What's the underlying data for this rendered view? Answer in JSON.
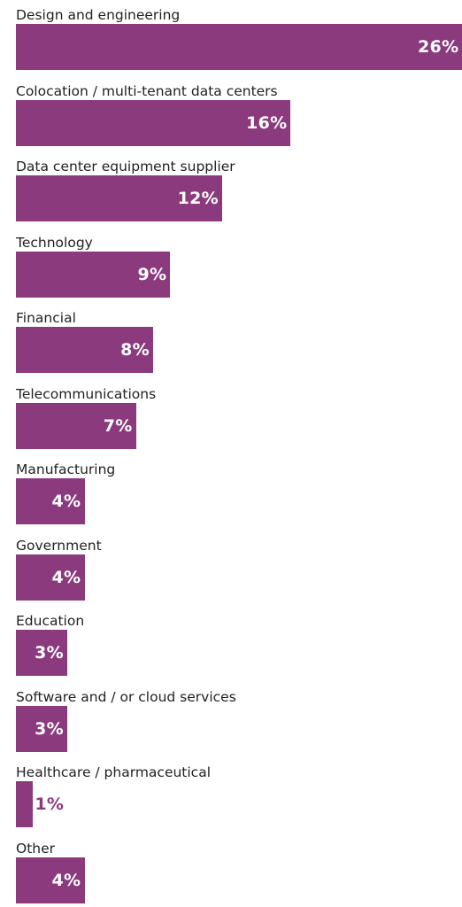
{
  "chart_data": {
    "type": "bar",
    "orientation": "horizontal",
    "categories": [
      "Design and engineering",
      "Colocation / multi-tenant data centers",
      "Data center equipment supplier",
      "Technology",
      "Financial",
      "Telecommunications",
      "Manufacturing",
      "Government",
      "Education",
      "Software and / or cloud services",
      "Healthcare / pharmaceutical",
      "Other"
    ],
    "values": [
      26,
      16,
      12,
      9,
      8,
      7,
      4,
      4,
      3,
      3,
      1,
      4
    ],
    "value_labels": [
      "26%",
      "16%",
      "12%",
      "9%",
      "8%",
      "7%",
      "4%",
      "4%",
      "3%",
      "3%",
      "1%",
      "4%"
    ],
    "xlim": [
      0,
      26
    ],
    "grid": false,
    "legend": "none",
    "colors": {
      "bar": "#8b3a7e",
      "label_inside": "#ffffff",
      "label_outside": "#8b3a7e",
      "category_text": "#222222"
    }
  }
}
